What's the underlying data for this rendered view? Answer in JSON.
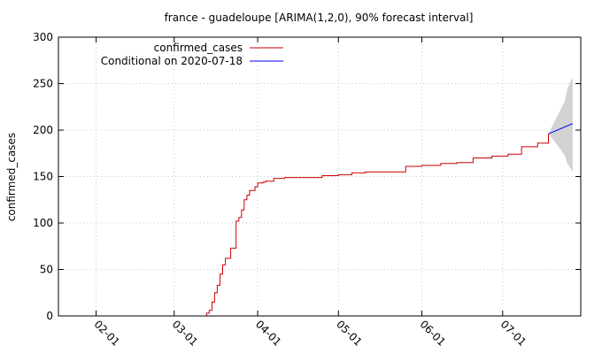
{
  "chart_data": {
    "type": "line",
    "title": "france - guadeloupe [ARIMA(1,2,0), 90% forecast interval]",
    "xlabel": "",
    "ylabel": "confirmed_cases",
    "ylim": [
      0,
      300
    ],
    "xlim": [
      "2020-01-18",
      "2020-07-30"
    ],
    "yticks": [
      0,
      50,
      100,
      150,
      200,
      250,
      300
    ],
    "xticks": [
      "02-01",
      "03-01",
      "04-01",
      "05-01",
      "06-01",
      "07-01"
    ],
    "xtick_dates": [
      "2020-02-01",
      "2020-03-01",
      "2020-04-01",
      "2020-05-01",
      "2020-06-01",
      "2020-07-01"
    ],
    "grid": true,
    "legend": "top-left",
    "series": [
      {
        "name": "confirmed_cases",
        "color": "#cc0000",
        "x": [
          "2020-03-09",
          "2020-03-12",
          "2020-03-13",
          "2020-03-14",
          "2020-03-15",
          "2020-03-16",
          "2020-03-17",
          "2020-03-18",
          "2020-03-19",
          "2020-03-20",
          "2020-03-21",
          "2020-03-22",
          "2020-03-23",
          "2020-03-24",
          "2020-03-25",
          "2020-03-26",
          "2020-03-27",
          "2020-03-28",
          "2020-03-29",
          "2020-03-30",
          "2020-03-31",
          "2020-04-01",
          "2020-04-02",
          "2020-04-03",
          "2020-04-04",
          "2020-04-05",
          "2020-04-07",
          "2020-04-09",
          "2020-04-11",
          "2020-04-14",
          "2020-04-18",
          "2020-04-25",
          "2020-05-01",
          "2020-05-06",
          "2020-05-11",
          "2020-05-20",
          "2020-05-25",
          "2020-05-26",
          "2020-06-01",
          "2020-06-08",
          "2020-06-14",
          "2020-06-20",
          "2020-06-27",
          "2020-07-03",
          "2020-07-08",
          "2020-07-14",
          "2020-07-18"
        ],
        "y": [
          0,
          0,
          3,
          6,
          15,
          25,
          33,
          45,
          55,
          62,
          62,
          73,
          73,
          102,
          106,
          114,
          125,
          130,
          135,
          135,
          139,
          143,
          143,
          144,
          145,
          145,
          148,
          148,
          149,
          149,
          149,
          151,
          152,
          154,
          155,
          155,
          155,
          161,
          162,
          164,
          165,
          170,
          172,
          174,
          182,
          186,
          196
        ]
      },
      {
        "name": "Conditional on 2020-07-18",
        "color": "#0000ff",
        "x": [
          "2020-07-18",
          "2020-07-27"
        ],
        "y": [
          196,
          207
        ]
      }
    ],
    "forecast_interval": {
      "x": [
        "2020-07-18",
        "2020-07-20",
        "2020-07-22",
        "2020-07-24",
        "2020-07-25",
        "2020-07-27"
      ],
      "upper": [
        196,
        208,
        219,
        231,
        244,
        257
      ],
      "lower": [
        196,
        189,
        181,
        173,
        164,
        155
      ],
      "color": "#d3d3d3"
    }
  }
}
